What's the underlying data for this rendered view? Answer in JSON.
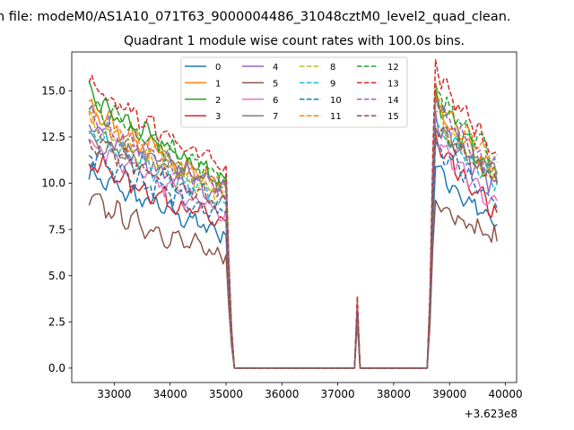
{
  "chart_data": {
    "type": "line",
    "suptitle": "n file: modeM0/AS1A10_071T63_9000004486_31048cztM0_level2_quad_clean.",
    "title": "Quadrant 1 module wise count rates with 100.0s bins.",
    "xlabel": "",
    "ylabel": "",
    "offset_text": "+3.623e8",
    "xlim": [
      32240,
      40200
    ],
    "ylim": [
      -0.78,
      17.1
    ],
    "xticks": [
      33000,
      34000,
      35000,
      36000,
      37000,
      38000,
      39000,
      40000
    ],
    "xtick_labels": [
      "33000",
      "34000",
      "35000",
      "36000",
      "37000",
      "38000",
      "39000",
      "40000"
    ],
    "yticks": [
      0,
      2.5,
      5,
      7.5,
      10,
      12.5,
      15
    ],
    "ytick_labels": [
      "0.0",
      "2.5",
      "5.0",
      "7.5",
      "10.0",
      "12.5",
      "15.0"
    ],
    "legend_position": "upper center",
    "gap": {
      "start": 35150,
      "end": 38650,
      "spike_x": 37350
    },
    "segment1": {
      "x_start": 32550,
      "x_end": 34950,
      "step": 50
    },
    "segment2": {
      "x_start": 38750,
      "x_end": 39850,
      "step": 50
    },
    "series": [
      {
        "name": "0",
        "color": "#1f77b4",
        "dash": false,
        "start1": 10.6,
        "end1": 7.3,
        "start2": 11.0,
        "end2": 7.7,
        "spike": 2.8
      },
      {
        "name": "1",
        "color": "#ff7f0e",
        "dash": false,
        "start1": 14.2,
        "end1": 9.8,
        "start2": 14.3,
        "end2": 10.4,
        "spike": 3.3
      },
      {
        "name": "2",
        "color": "#2ca02c",
        "dash": false,
        "start1": 14.8,
        "end1": 10.2,
        "start2": 14.6,
        "end2": 10.6,
        "spike": 3.4
      },
      {
        "name": "3",
        "color": "#d62728",
        "dash": false,
        "start1": 11.3,
        "end1": 7.8,
        "start2": 12.2,
        "end2": 8.4,
        "spike": 2.9
      },
      {
        "name": "4",
        "color": "#9467bd",
        "dash": false,
        "start1": 13.1,
        "end1": 9.1,
        "start2": 13.7,
        "end2": 9.7,
        "spike": 3.1
      },
      {
        "name": "5",
        "color": "#8c564b",
        "dash": false,
        "start1": 9.2,
        "end1": 6.0,
        "start2": 9.3,
        "end2": 6.9,
        "spike": 2.5
      },
      {
        "name": "6",
        "color": "#e377c2",
        "dash": false,
        "start1": 12.3,
        "end1": 8.3,
        "start2": 12.6,
        "end2": 8.8,
        "spike": 3.0
      },
      {
        "name": "7",
        "color": "#7f7f7f",
        "dash": false,
        "start1": 12.5,
        "end1": 10.0,
        "start2": 13.0,
        "end2": 10.5,
        "spike": 3.1
      },
      {
        "name": "8",
        "color": "#bcbd22",
        "dash": true,
        "start1": 13.4,
        "end1": 9.4,
        "start2": 13.8,
        "end2": 10.2,
        "spike": 3.2
      },
      {
        "name": "9",
        "color": "#17becf",
        "dash": true,
        "start1": 12.8,
        "end1": 9.0,
        "start2": 13.4,
        "end2": 9.9,
        "spike": 3.1
      },
      {
        "name": "10",
        "color": "#1f77b4",
        "dash": true,
        "start1": 11.5,
        "end1": 8.3,
        "start2": 12.3,
        "end2": 9.1,
        "spike": 2.9
      },
      {
        "name": "11",
        "color": "#ff7f0e",
        "dash": true,
        "start1": 13.9,
        "end1": 9.7,
        "start2": 15.1,
        "end2": 10.9,
        "spike": 3.4
      },
      {
        "name": "12",
        "color": "#2ca02c",
        "dash": true,
        "start1": 14.5,
        "end1": 10.3,
        "start2": 15.3,
        "end2": 11.2,
        "spike": 3.6
      },
      {
        "name": "13",
        "color": "#d62728",
        "dash": true,
        "start1": 15.6,
        "end1": 10.8,
        "start2": 16.4,
        "end2": 11.6,
        "spike": 3.9
      },
      {
        "name": "14",
        "color": "#9467bd",
        "dash": true,
        "start1": 13.7,
        "end1": 9.6,
        "start2": 14.5,
        "end2": 10.7,
        "spike": 3.3
      },
      {
        "name": "15",
        "color": "#8c564b",
        "dash": true,
        "start1": 12.4,
        "end1": 8.9,
        "start2": 13.4,
        "end2": 10.1,
        "spike": 3.1
      }
    ]
  }
}
